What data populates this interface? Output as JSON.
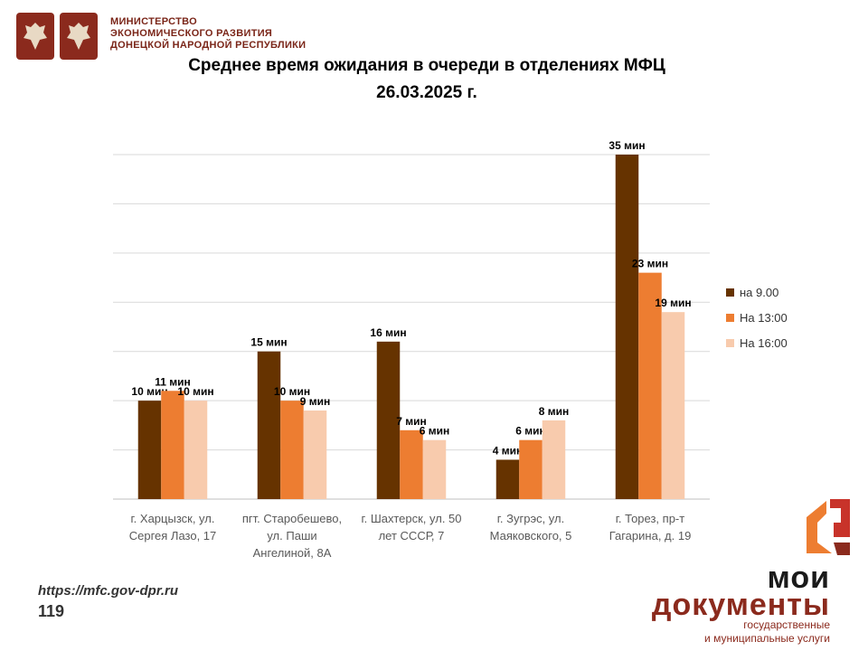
{
  "header": {
    "ministry_lines": [
      "МИНИСТЕРСТВО",
      "ЭКОНОМИЧЕСКОГО РАЗВИТИЯ",
      "ДОНЕЦКОЙ НАРОДНОЙ РЕСПУБЛИКИ"
    ]
  },
  "footer": {
    "url": "https://mfc.gov-dpr.ru",
    "page_number": "119"
  },
  "brand": {
    "line1": "мои",
    "line2": "документы",
    "line3": "государственные",
    "line4": "и муниципальные услуги"
  },
  "colors": {
    "series1": "#663300",
    "series2": "#ED7D31",
    "series3": "#F8CBAD",
    "brand": "#8b2a1d"
  },
  "chart_data": {
    "type": "bar",
    "title": "Среднее время ожидания в очереди в отделениях МФЦ",
    "subtitle": "26.03.2025   г.",
    "categories": [
      "г. Харцызск, ул. Сергея Лазо, 17",
      "пгт. Старобешево, ул. Паши Ангелиной, 8А",
      "г. Шахтерск, ул. 50 лет СССР, 7",
      "г. Зугрэс, ул. Маяковского, 5",
      "г. Торез, пр-т Гагарина, д. 19"
    ],
    "category_lines": [
      [
        "г. Харцызск, ул.",
        "Сергея Лазо, 17"
      ],
      [
        "пгт. Старобешево,",
        "ул. Паши",
        "Ангелиной, 8А"
      ],
      [
        "г. Шахтерск, ул. 50",
        "лет СССР, 7"
      ],
      [
        "г. Зугрэс, ул.",
        "Маяковского, 5"
      ],
      [
        "г. Торез, пр-т",
        "Гагарина, д. 19"
      ]
    ],
    "series": [
      {
        "name": "на 9.00",
        "values": [
          10,
          15,
          16,
          4,
          35
        ]
      },
      {
        "name": "На 13:00",
        "values": [
          11,
          10,
          7,
          6,
          23
        ]
      },
      {
        "name": "На 16:00",
        "values": [
          10,
          9,
          6,
          8,
          19
        ]
      }
    ],
    "value_suffix": " мин",
    "ylim": [
      0,
      35
    ],
    "grid": true,
    "legend_position": "right"
  }
}
